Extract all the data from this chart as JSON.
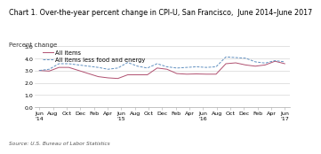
{
  "title": "Chart 1. Over-the-year percent change in CPI-U, San Francisco,  June 2014–June 2017",
  "ylabel": "Percent change",
  "source": "Source: U.S. Bureau of Labor Statistics",
  "ylim": [
    0.0,
    5.0
  ],
  "yticks": [
    0.0,
    1.0,
    2.0,
    3.0,
    4.0,
    5.0
  ],
  "xtick_labels": [
    "Jun\n'14",
    "Aug",
    "Oct",
    "Dec",
    "Feb",
    "Apr",
    "Jun\n'15",
    "Aug",
    "Oct",
    "Dec",
    "Feb",
    "Apr",
    "Jun\n'16",
    "Aug",
    "Oct",
    "Dec",
    "Feb",
    "Apr",
    "Jun\n'17"
  ],
  "all_items": [
    3.0,
    2.95,
    3.25,
    3.25,
    3.0,
    2.75,
    2.5,
    2.4,
    2.35,
    2.65,
    2.65,
    2.65,
    3.2,
    3.1,
    2.75,
    2.7,
    2.72,
    2.7,
    2.7,
    3.55,
    3.62,
    3.45,
    3.35,
    3.45,
    3.75,
    3.55
  ],
  "all_items_less": [
    3.0,
    3.1,
    3.55,
    3.55,
    3.45,
    3.35,
    3.25,
    3.1,
    3.2,
    3.65,
    3.35,
    3.2,
    3.55,
    3.3,
    3.2,
    3.25,
    3.3,
    3.25,
    3.3,
    4.1,
    4.05,
    4.0,
    3.7,
    3.6,
    3.8,
    3.7
  ],
  "all_items_color": "#b05070",
  "all_items_less_color": "#6090c0",
  "background_color": "#ffffff",
  "grid_color": "#cccccc",
  "title_fontsize": 5.8,
  "ylabel_fontsize": 5.0,
  "tick_fontsize": 4.5,
  "legend_fontsize": 4.8,
  "source_fontsize": 4.2,
  "n_points": 26
}
